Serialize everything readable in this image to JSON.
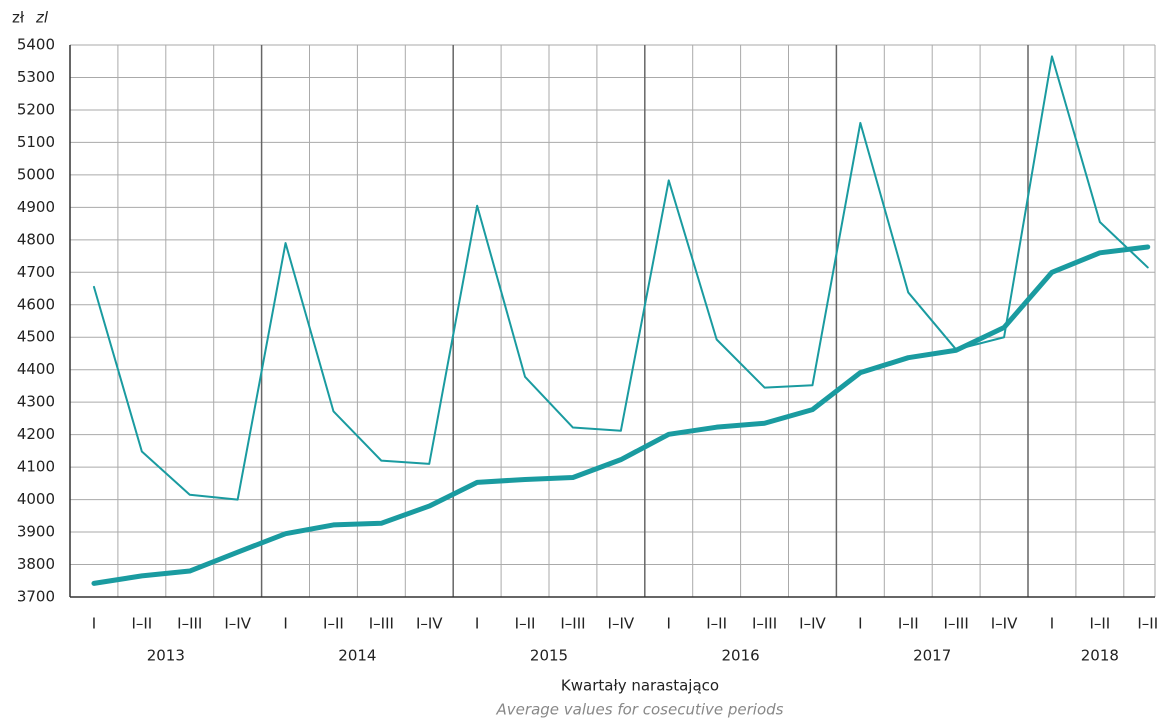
{
  "chart_data": {
    "type": "line",
    "y_unit": "zł",
    "y_unit_en": "zl",
    "x_label": "Kwartały narastająco",
    "x_label_en": "Average values for cosecutive periods",
    "categories": [
      "I",
      "I–II",
      "I–III",
      "I–IV",
      "I",
      "I–II",
      "I–III",
      "I–IV",
      "I",
      "I–II",
      "I–III",
      "I–IV",
      "I",
      "I–II",
      "I–III",
      "I–IV",
      "I",
      "I–II",
      "I–III",
      "I–IV",
      "I",
      "I–II",
      "I–II"
    ],
    "groups": [
      "2013",
      "2014",
      "2015",
      "2016",
      "2017",
      "2018"
    ],
    "series": [
      {
        "color": "#1a9ba0",
        "width": 2,
        "values": [
          4655,
          4148,
          4015,
          4000,
          4790,
          4272,
          4120,
          4110,
          4905,
          4378,
          4222,
          4212,
          4983,
          4493,
          4345,
          4352,
          5160,
          4638,
          4462,
          4500,
          5365,
          4855,
          4715
        ]
      },
      {
        "color": "#1a9ba0",
        "width": 5,
        "values": [
          3742,
          3765,
          3780,
          3838,
          3895,
          3922,
          3927,
          3980,
          4053,
          4062,
          4068,
          4123,
          4201,
          4223,
          4235,
          4277,
          4391,
          4437,
          4460,
          4530,
          4700,
          4760,
          4778
        ]
      }
    ],
    "ylim": [
      3700,
      5400
    ],
    "yticks": [
      3700,
      3800,
      3900,
      4000,
      4100,
      4200,
      4300,
      4400,
      4500,
      4600,
      4700,
      4800,
      4900,
      5000,
      5100,
      5200,
      5300,
      5400
    ],
    "grid": true
  }
}
